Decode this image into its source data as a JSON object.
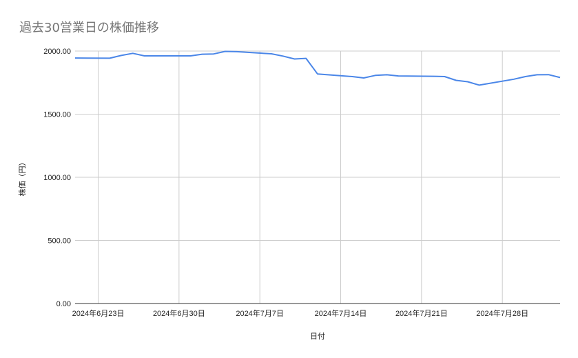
{
  "chart_data": {
    "type": "line",
    "title": "過去30営業日の株価推移",
    "xlabel": "日付",
    "ylabel": "株価（円）",
    "ylim": [
      0,
      2000
    ],
    "yticks": [
      "0.00",
      "500.00",
      "1000.00",
      "1500.00",
      "2000.00"
    ],
    "xticks": [
      "2024年6月23日",
      "2024年6月30日",
      "2024年7月7日",
      "2024年7月14日",
      "2024年7月21日",
      "2024年7月28日"
    ],
    "grid": true,
    "legend": "none",
    "line_color": "#4a86e8",
    "series": [
      {
        "points": [
          [
            "2024-06-21",
            1945
          ],
          [
            "2024-06-24",
            1943
          ],
          [
            "2024-06-25",
            1965
          ],
          [
            "2024-06-26",
            1982
          ],
          [
            "2024-06-27",
            1962
          ],
          [
            "2024-06-28",
            1962
          ],
          [
            "2024-07-01",
            1962
          ],
          [
            "2024-07-02",
            1975
          ],
          [
            "2024-07-03",
            1977
          ],
          [
            "2024-07-04",
            1997
          ],
          [
            "2024-07-05",
            1995
          ],
          [
            "2024-07-08",
            1978
          ],
          [
            "2024-07-09",
            1960
          ],
          [
            "2024-07-10",
            1937
          ],
          [
            "2024-07-11",
            1942
          ],
          [
            "2024-07-12",
            1818
          ],
          [
            "2024-07-15",
            1798
          ],
          [
            "2024-07-16",
            1787
          ],
          [
            "2024-07-17",
            1807
          ],
          [
            "2024-07-18",
            1812
          ],
          [
            "2024-07-19",
            1803
          ],
          [
            "2024-07-22",
            1800
          ],
          [
            "2024-07-23",
            1798
          ],
          [
            "2024-07-24",
            1768
          ],
          [
            "2024-07-25",
            1757
          ],
          [
            "2024-07-26",
            1730
          ],
          [
            "2024-07-29",
            1777
          ],
          [
            "2024-07-30",
            1798
          ],
          [
            "2024-07-31",
            1812
          ],
          [
            "2024-08-01",
            1813
          ],
          [
            "2024-08-02",
            1790
          ]
        ]
      }
    ]
  }
}
